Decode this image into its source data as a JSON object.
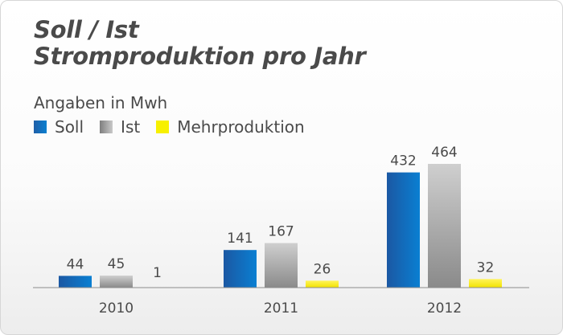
{
  "title_line1": "Soll / Ist",
  "title_line2": "Stromproduktion pro Jahr",
  "unit_label": "Angaben in Mwh",
  "colors": {
    "soll": "#1565b8",
    "ist": "#a6a6a6",
    "mehr": "#f7ec00"
  },
  "chart_data": {
    "type": "bar",
    "categories": [
      "2010",
      "2011",
      "2012"
    ],
    "series": [
      {
        "name": "Soll",
        "values": [
          44,
          141,
          432
        ]
      },
      {
        "name": "Ist",
        "values": [
          45,
          167,
          464
        ]
      },
      {
        "name": "Mehrproduktion",
        "values": [
          1,
          26,
          32
        ]
      }
    ],
    "legend": "top-left",
    "grid": false
  }
}
